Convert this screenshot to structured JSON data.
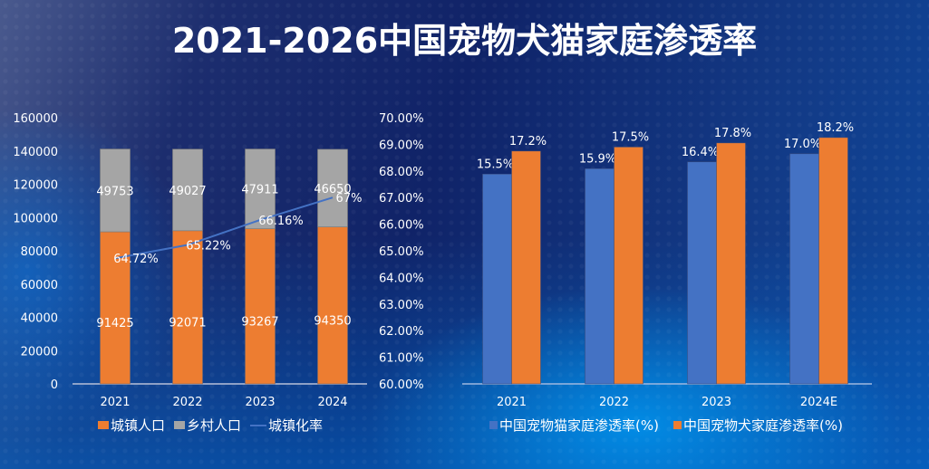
{
  "title": "2021-2026中国宠物犬猫家庭渗透率",
  "colors": {
    "urban": "#ed7d31",
    "rural": "#a5a5a5",
    "rate_line": "#4472c4",
    "cat": "#4472c4",
    "dog": "#ed7d31"
  },
  "chart_data": [
    {
      "type": "bar",
      "stacked": true,
      "title": "",
      "categories": [
        "2021",
        "2022",
        "2023",
        "2024"
      ],
      "series": [
        {
          "name": "城镇人口",
          "values": [
            91425,
            92071,
            93267,
            94350
          ],
          "axis": "left"
        },
        {
          "name": "乡村人口",
          "values": [
            49753,
            49027,
            47911,
            46650
          ],
          "axis": "left"
        },
        {
          "name": "城镇化率",
          "type": "line",
          "values": [
            64.72,
            65.22,
            66.16,
            67.0
          ],
          "labels": [
            "64.72%",
            "65.22%",
            "66.16%",
            "67%"
          ],
          "axis": "right"
        }
      ],
      "yaxis_left": {
        "range": [
          0,
          160000
        ],
        "ticks": [
          "0",
          "20000",
          "40000",
          "60000",
          "80000",
          "100000",
          "120000",
          "140000",
          "160000"
        ]
      },
      "yaxis_right": {
        "range": [
          60,
          70
        ],
        "ticks": [
          "60.00%",
          "61.00%",
          "62.00%",
          "63.00%",
          "64.00%",
          "65.00%",
          "66.00%",
          "67.00%",
          "68.00%",
          "69.00%",
          "70.00%"
        ]
      },
      "xlabel": "",
      "ylabel": "",
      "grid": false,
      "legend": "bottom"
    },
    {
      "type": "bar",
      "stacked": false,
      "title": "",
      "categories": [
        "2021",
        "2022",
        "2023",
        "2024E"
      ],
      "series": [
        {
          "name": "中国宠物猫家庭渗透率(%)",
          "values": [
            15.5,
            15.9,
            16.4,
            17.0
          ],
          "labels": [
            "15.5%",
            "15.9%",
            "16.4%",
            "17.0%"
          ]
        },
        {
          "name": "中国宠物犬家庭渗透率(%)",
          "values": [
            17.2,
            17.5,
            17.8,
            18.2
          ],
          "labels": [
            "17.2%",
            "17.5%",
            "17.8%",
            "18.2%"
          ]
        }
      ],
      "ylim": [
        0,
        20
      ],
      "yaxis_visible": false,
      "xlabel": "",
      "ylabel": "",
      "grid": false,
      "legend": "bottom"
    }
  ]
}
